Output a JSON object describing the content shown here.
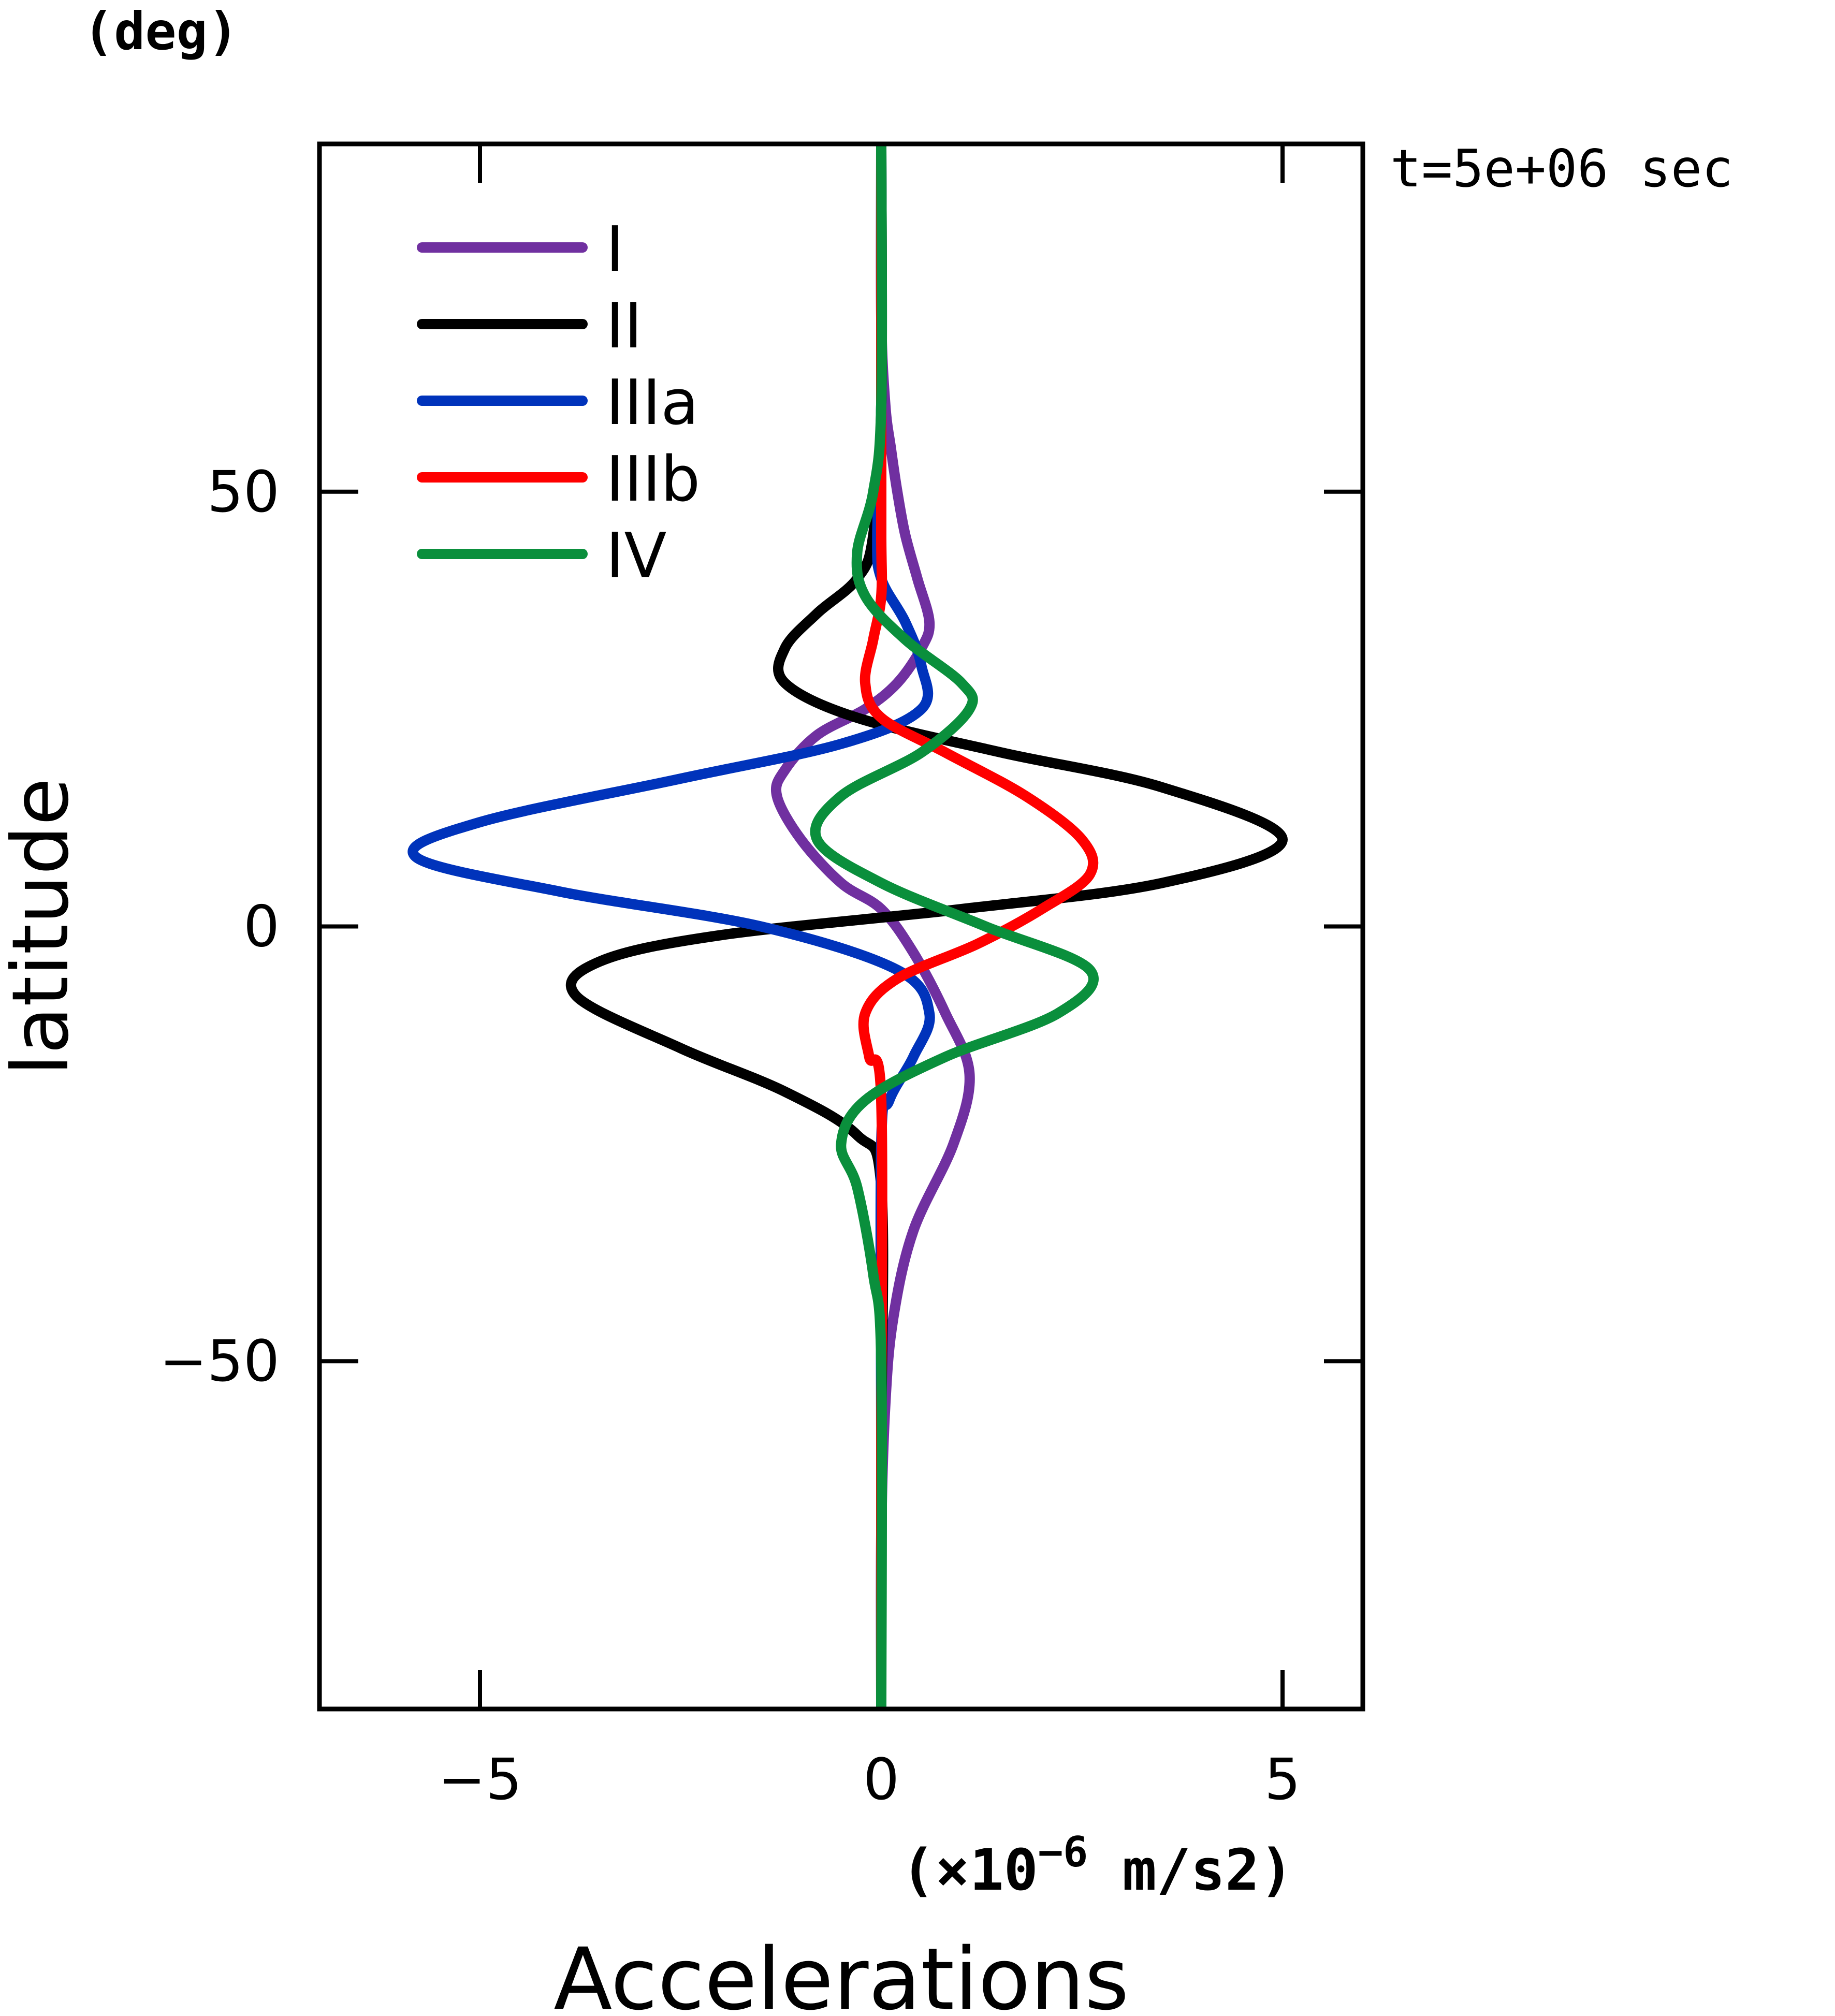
{
  "chart_data": {
    "type": "line",
    "orientation": "vertical-profile",
    "title": "",
    "time_label": "t=5e+06 sec",
    "xlabel": "Accelerations",
    "xunit_prefix": "(×10",
    "xunit_exp": "−6",
    "xunit_suffix": " m/s2)",
    "ylabel": "latitude",
    "yunit": "(deg)",
    "xlim": [
      -7,
      6
    ],
    "ylim": [
      -90,
      90
    ],
    "xticks": [
      {
        "value": -5,
        "label": "−5"
      },
      {
        "value": 0,
        "label": "0"
      },
      {
        "value": 5,
        "label": "5"
      }
    ],
    "yticks": [
      {
        "value": 50,
        "label": "50"
      },
      {
        "value": 0,
        "label": "0"
      },
      {
        "value": -50,
        "label": "−50"
      }
    ],
    "grid": false,
    "legend_position": "top-left",
    "series": [
      {
        "name": "I",
        "color": "#7030a0",
        "points": [
          [
            0,
            90
          ],
          [
            0,
            70
          ],
          [
            0.05,
            60
          ],
          [
            0.12,
            55
          ],
          [
            0.2,
            50
          ],
          [
            0.3,
            45
          ],
          [
            0.45,
            40
          ],
          [
            0.6,
            35
          ],
          [
            0.5,
            32
          ],
          [
            0.2,
            28
          ],
          [
            -0.2,
            25
          ],
          [
            -0.8,
            22
          ],
          [
            -1.2,
            18
          ],
          [
            -1.3,
            15
          ],
          [
            -1.0,
            10
          ],
          [
            -0.5,
            5
          ],
          [
            0,
            2
          ],
          [
            0.4,
            -3
          ],
          [
            0.8,
            -10
          ],
          [
            1.1,
            -17
          ],
          [
            0.9,
            -25
          ],
          [
            0.4,
            -35
          ],
          [
            0.15,
            -45
          ],
          [
            0.05,
            -55
          ],
          [
            0,
            -70
          ],
          [
            0,
            -90
          ]
        ]
      },
      {
        "name": "II",
        "color": "#000000",
        "points": [
          [
            0,
            90
          ],
          [
            0,
            60
          ],
          [
            -0.1,
            45
          ],
          [
            -0.3,
            40
          ],
          [
            -0.8,
            36
          ],
          [
            -1.2,
            32
          ],
          [
            -1.2,
            28
          ],
          [
            -0.3,
            24
          ],
          [
            1.5,
            20
          ],
          [
            3.5,
            16
          ],
          [
            5.0,
            10
          ],
          [
            3.5,
            5
          ],
          [
            1.0,
            2
          ],
          [
            -2.0,
            -1
          ],
          [
            -3.5,
            -4
          ],
          [
            -3.8,
            -8
          ],
          [
            -2.5,
            -14
          ],
          [
            -1.2,
            -19
          ],
          [
            -0.3,
            -24
          ],
          [
            0,
            -30
          ],
          [
            0,
            -60
          ],
          [
            0,
            -90
          ]
        ]
      },
      {
        "name": "IIIa",
        "color": "#0033bb",
        "points": [
          [
            0,
            90
          ],
          [
            0,
            60
          ],
          [
            -0.05,
            45
          ],
          [
            0,
            40
          ],
          [
            0.3,
            35
          ],
          [
            0.5,
            30
          ],
          [
            0.5,
            25
          ],
          [
            -0.5,
            21
          ],
          [
            -2.5,
            17
          ],
          [
            -5.0,
            12
          ],
          [
            -5.8,
            8
          ],
          [
            -4.0,
            4
          ],
          [
            -1.5,
            0
          ],
          [
            0.2,
            -5
          ],
          [
            0.6,
            -10
          ],
          [
            0.4,
            -15
          ],
          [
            0.1,
            -20
          ],
          [
            0,
            -25
          ],
          [
            0,
            -60
          ],
          [
            0,
            -90
          ]
        ]
      },
      {
        "name": "IIIb",
        "color": "#ff0000",
        "points": [
          [
            0,
            90
          ],
          [
            0,
            60
          ],
          [
            0,
            45
          ],
          [
            0,
            38
          ],
          [
            -0.1,
            33
          ],
          [
            -0.2,
            28
          ],
          [
            0,
            24
          ],
          [
            0.8,
            20
          ],
          [
            1.8,
            15
          ],
          [
            2.5,
            10
          ],
          [
            2.6,
            6
          ],
          [
            2.0,
            2
          ],
          [
            1.2,
            -2
          ],
          [
            0.2,
            -6
          ],
          [
            -0.2,
            -10
          ],
          [
            -0.15,
            -15
          ],
          [
            0,
            -20
          ],
          [
            0,
            -60
          ],
          [
            0,
            -90
          ]
        ]
      },
      {
        "name": "IV",
        "color": "#0a8f3c",
        "points": [
          [
            0,
            90
          ],
          [
            0,
            60
          ],
          [
            -0.1,
            50
          ],
          [
            -0.3,
            43
          ],
          [
            -0.2,
            38
          ],
          [
            0.3,
            33
          ],
          [
            1.0,
            28
          ],
          [
            1.1,
            25
          ],
          [
            0.5,
            20
          ],
          [
            -0.5,
            15
          ],
          [
            -0.8,
            10
          ],
          [
            0,
            5
          ],
          [
            1.3,
            0
          ],
          [
            2.6,
            -5
          ],
          [
            2.2,
            -10
          ],
          [
            0.8,
            -15
          ],
          [
            -0.2,
            -20
          ],
          [
            -0.5,
            -25
          ],
          [
            -0.3,
            -30
          ],
          [
            -0.1,
            -40
          ],
          [
            0,
            -50
          ],
          [
            0,
            -90
          ]
        ]
      }
    ]
  }
}
